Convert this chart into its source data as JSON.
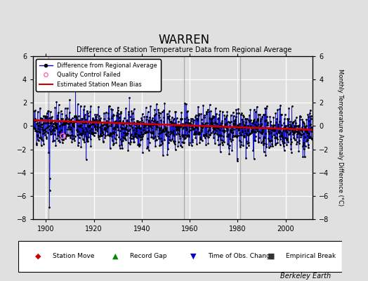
{
  "title": "WARREN",
  "subtitle": "Difference of Station Temperature Data from Regional Average",
  "ylabel_right": "Monthly Temperature Anomaly Difference (°C)",
  "credit": "Berkeley Earth",
  "year_start": 1895,
  "year_end": 2011,
  "ylim": [
    -8,
    6
  ],
  "yticks": [
    -8,
    -6,
    -4,
    -2,
    0,
    2,
    4,
    6
  ],
  "xticks": [
    1900,
    1920,
    1940,
    1960,
    1980,
    2000
  ],
  "bg_color": "#e0e0e0",
  "plot_bg_color": "#e0e0e0",
  "grid_color": "#ffffff",
  "line_color": "#0000cc",
  "dot_color": "#000000",
  "bias_line_color": "#cc0000",
  "qc_color": "#ff69b4",
  "vertical_line_color": "#aaaaaa",
  "vertical_lines": [
    1901.0,
    1957.5,
    1981.0
  ],
  "seed": 42
}
